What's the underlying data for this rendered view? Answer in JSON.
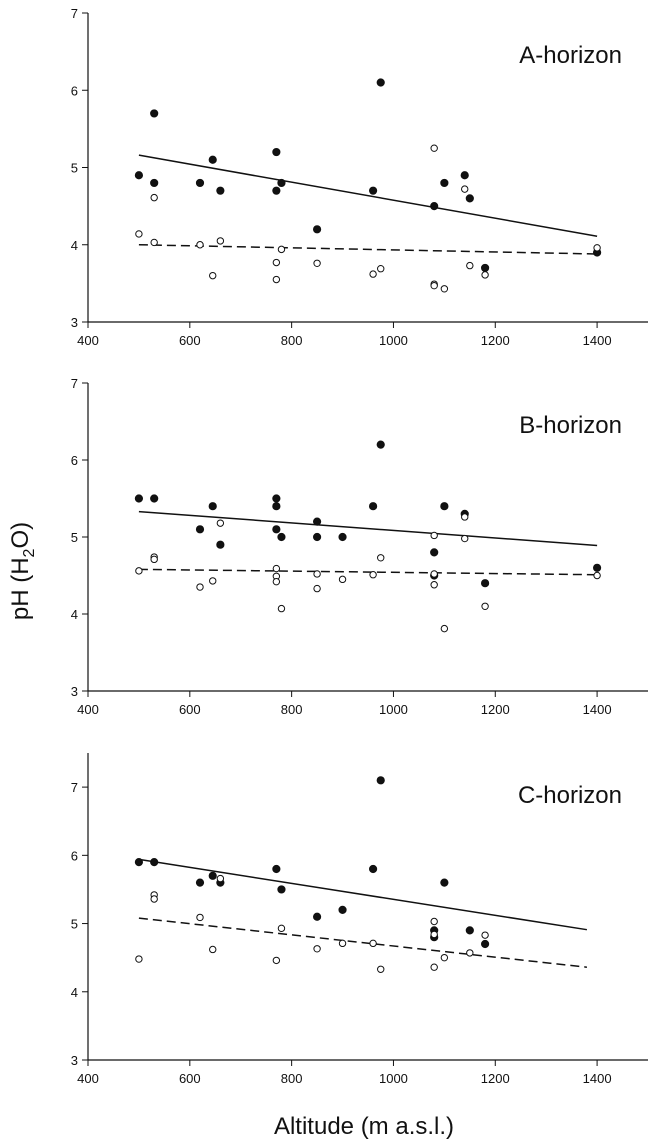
{
  "figure": {
    "xlabel": "Altitude (m a.s.l.)",
    "ylabel_main": "pH (H",
    "ylabel_sub": "2",
    "ylabel_end": "O)"
  },
  "chart_data": [
    {
      "type": "scatter",
      "title": "A-horizon",
      "xlim": [
        400,
        1500
      ],
      "ylim": [
        3,
        7
      ],
      "x_ticks": [
        400,
        600,
        800,
        1000,
        1200,
        1400
      ],
      "y_ticks": [
        3,
        4,
        5,
        6,
        7
      ],
      "series": [
        {
          "marker": "filled",
          "points": [
            [
              500,
              4.9
            ],
            [
              530,
              5.7
            ],
            [
              530,
              4.8
            ],
            [
              620,
              4.8
            ],
            [
              645,
              5.1
            ],
            [
              660,
              4.7
            ],
            [
              770,
              5.2
            ],
            [
              770,
              4.7
            ],
            [
              780,
              4.8
            ],
            [
              850,
              4.2
            ],
            [
              960,
              4.7
            ],
            [
              975,
              6.1
            ],
            [
              1080,
              4.5
            ],
            [
              1100,
              4.8
            ],
            [
              1140,
              4.9
            ],
            [
              1150,
              4.6
            ],
            [
              1180,
              3.7
            ],
            [
              1400,
              3.9
            ]
          ],
          "trend": {
            "style": "solid",
            "x": [
              500,
              1400
            ],
            "y": [
              5.16,
              4.11
            ]
          }
        },
        {
          "marker": "open",
          "points": [
            [
              500,
              4.14
            ],
            [
              530,
              4.61
            ],
            [
              530,
              4.03
            ],
            [
              620,
              4.0
            ],
            [
              645,
              3.6
            ],
            [
              660,
              4.05
            ],
            [
              770,
              3.77
            ],
            [
              770,
              3.55
            ],
            [
              780,
              3.94
            ],
            [
              850,
              3.76
            ],
            [
              960,
              3.62
            ],
            [
              975,
              3.69
            ],
            [
              1080,
              5.25
            ],
            [
              1080,
              3.49
            ],
            [
              1080,
              3.47
            ],
            [
              1100,
              3.43
            ],
            [
              1140,
              4.72
            ],
            [
              1150,
              3.73
            ],
            [
              1180,
              3.61
            ],
            [
              1400,
              3.96
            ]
          ],
          "trend": {
            "style": "dashed",
            "x": [
              500,
              1400
            ],
            "y": [
              4.0,
              3.88
            ]
          }
        }
      ]
    },
    {
      "type": "scatter",
      "title": "B-horizon",
      "xlim": [
        400,
        1500
      ],
      "ylim": [
        3,
        7
      ],
      "x_ticks": [
        400,
        600,
        800,
        1000,
        1200,
        1400
      ],
      "y_ticks": [
        3,
        4,
        5,
        6,
        7
      ],
      "series": [
        {
          "marker": "filled",
          "points": [
            [
              500,
              5.5
            ],
            [
              530,
              5.5
            ],
            [
              620,
              5.1
            ],
            [
              645,
              5.4
            ],
            [
              660,
              4.9
            ],
            [
              770,
              5.5
            ],
            [
              770,
              5.4
            ],
            [
              770,
              5.1
            ],
            [
              780,
              5.0
            ],
            [
              850,
              5.2
            ],
            [
              850,
              5.0
            ],
            [
              900,
              5.0
            ],
            [
              960,
              5.4
            ],
            [
              975,
              6.2
            ],
            [
              1080,
              4.8
            ],
            [
              1080,
              4.5
            ],
            [
              1100,
              5.4
            ],
            [
              1140,
              5.3
            ],
            [
              1180,
              4.4
            ],
            [
              1400,
              4.6
            ]
          ],
          "trend": {
            "style": "solid",
            "x": [
              500,
              1400
            ],
            "y": [
              5.33,
              4.89
            ]
          }
        },
        {
          "marker": "open",
          "points": [
            [
              500,
              4.56
            ],
            [
              530,
              4.74
            ],
            [
              530,
              4.71
            ],
            [
              620,
              4.35
            ],
            [
              645,
              4.43
            ],
            [
              660,
              5.18
            ],
            [
              770,
              4.59
            ],
            [
              770,
              4.49
            ],
            [
              770,
              4.42
            ],
            [
              780,
              4.07
            ],
            [
              850,
              4.52
            ],
            [
              850,
              4.33
            ],
            [
              900,
              4.45
            ],
            [
              960,
              4.51
            ],
            [
              975,
              4.73
            ],
            [
              1080,
              5.02
            ],
            [
              1080,
              4.52
            ],
            [
              1080,
              4.38
            ],
            [
              1100,
              3.81
            ],
            [
              1140,
              5.26
            ],
            [
              1140,
              4.98
            ],
            [
              1180,
              4.1
            ],
            [
              1400,
              4.5
            ]
          ],
          "trend": {
            "style": "dashed",
            "x": [
              500,
              1400
            ],
            "y": [
              4.58,
              4.51
            ]
          }
        }
      ]
    },
    {
      "type": "scatter",
      "title": "C-horizon",
      "xlim": [
        400,
        1500
      ],
      "ylim": [
        3,
        7.5
      ],
      "x_ticks": [
        400,
        600,
        800,
        1000,
        1200,
        1400
      ],
      "y_ticks": [
        3,
        4,
        5,
        6,
        7
      ],
      "series": [
        {
          "marker": "filled",
          "points": [
            [
              500,
              5.9
            ],
            [
              530,
              5.9
            ],
            [
              620,
              5.6
            ],
            [
              645,
              5.7
            ],
            [
              660,
              5.6
            ],
            [
              770,
              5.8
            ],
            [
              780,
              5.5
            ],
            [
              850,
              5.1
            ],
            [
              900,
              5.2
            ],
            [
              960,
              5.8
            ],
            [
              975,
              7.1
            ],
            [
              1080,
              4.9
            ],
            [
              1080,
              4.8
            ],
            [
              1100,
              5.6
            ],
            [
              1150,
              4.9
            ],
            [
              1180,
              4.7
            ]
          ],
          "trend": {
            "style": "solid",
            "x": [
              500,
              1380
            ],
            "y": [
              5.94,
              4.91
            ]
          }
        },
        {
          "marker": "open",
          "points": [
            [
              500,
              4.48
            ],
            [
              530,
              5.42
            ],
            [
              530,
              5.36
            ],
            [
              620,
              5.09
            ],
            [
              645,
              4.62
            ],
            [
              660,
              5.66
            ],
            [
              770,
              4.46
            ],
            [
              780,
              4.93
            ],
            [
              850,
              4.63
            ],
            [
              900,
              4.71
            ],
            [
              960,
              4.71
            ],
            [
              975,
              4.33
            ],
            [
              1080,
              5.03
            ],
            [
              1080,
              4.84
            ],
            [
              1080,
              4.36
            ],
            [
              1100,
              4.5
            ],
            [
              1150,
              4.57
            ],
            [
              1180,
              4.83
            ]
          ],
          "trend": {
            "style": "dashed",
            "x": [
              500,
              1380
            ],
            "y": [
              5.08,
              4.36
            ]
          }
        }
      ]
    }
  ]
}
